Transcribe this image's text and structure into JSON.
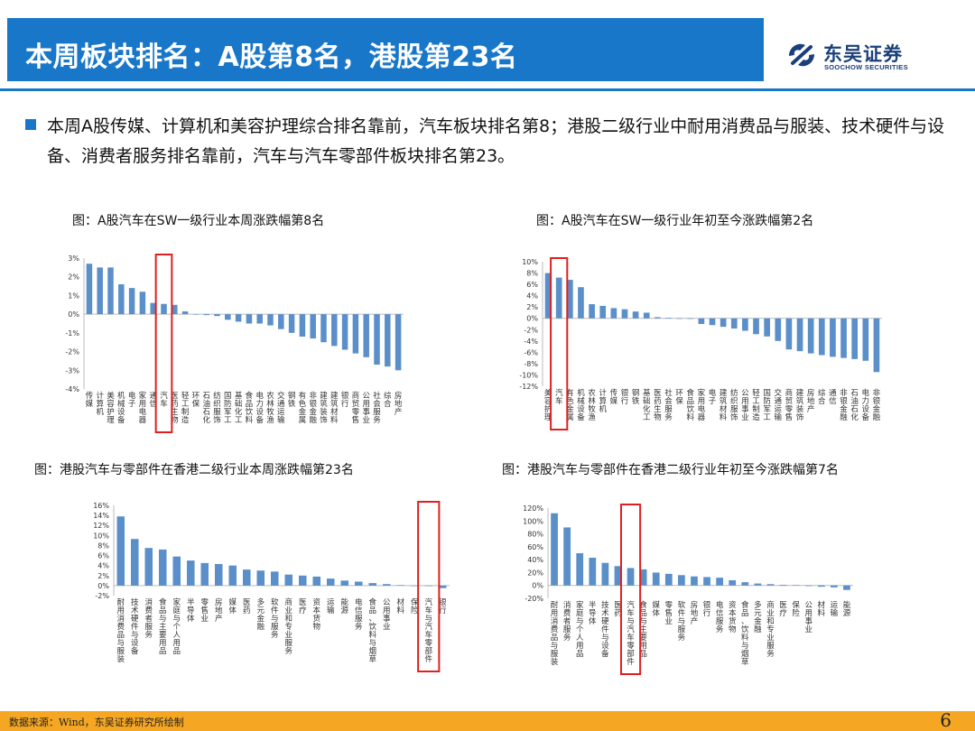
{
  "header": {
    "title": "本周板块排名：A股第8名，港股第23名",
    "logo_cn": "东吴证券",
    "logo_en": "SOOCHOW SECURITIES"
  },
  "summary": {
    "text": "本周A股传媒、计算机和美容护理综合排名靠前，汽车板块排名第8；港股二级行业中耐用消费品与服装、技术硬件与设备、消费者服务排名靠前，汽车与汽车零部件板块排名第23。"
  },
  "colors": {
    "brand": "#1877c9",
    "bar": "#5b8fc9",
    "highlight": "#e02020",
    "footer": "#f5a623"
  },
  "footer": {
    "source": "数据来源：Wind，东吴证券研究所绘制",
    "page": "6"
  },
  "chart_data": [
    {
      "type": "bar",
      "title": "图：A股汽车在SW一级行业本周涨跌幅第8名",
      "categories": [
        "传媒",
        "计算机",
        "美容护理",
        "机械设备",
        "电子",
        "家用电器",
        "通信",
        "汽车",
        "医药生物",
        "轻工制造",
        "环保",
        "石油石化",
        "纺织服饰",
        "国防军工",
        "基础化工",
        "食品饮料",
        "电力设备",
        "农林牧渔",
        "交通运输",
        "钢铁",
        "有色金属",
        "非银金融",
        "建筑装饰",
        "建筑材料",
        "银行",
        "商贸零售",
        "公用事业",
        "社会服务",
        "综合",
        "房地产"
      ],
      "values": [
        2.7,
        2.5,
        2.5,
        1.6,
        1.4,
        1.2,
        0.6,
        0.55,
        0.5,
        0.15,
        0.0,
        -0.05,
        -0.1,
        -0.3,
        -0.4,
        -0.5,
        -0.5,
        -0.6,
        -0.8,
        -1.0,
        -1.2,
        -1.3,
        -1.5,
        -1.7,
        -1.9,
        -2.1,
        -2.3,
        -2.7,
        -2.8,
        -3.0
      ],
      "ylim": [
        -4,
        3
      ],
      "yticks": [
        3,
        2,
        1,
        0,
        -1,
        -2,
        -3,
        -4
      ],
      "highlight_category": "汽车",
      "tick_suffix": "%"
    },
    {
      "type": "bar",
      "title": "图：A股汽车在SW一级行业年初至今涨跌幅第2名",
      "categories": [
        "美容护理",
        "汽车",
        "有色金属",
        "机械设备",
        "农林牧渔",
        "计算机",
        "传媒",
        "银行",
        "钢铁",
        "基础化工",
        "医药生物",
        "社会服务",
        "环保",
        "食品饮料",
        "家用电器",
        "电子",
        "建筑材料",
        "纺织服饰",
        "公用事业",
        "轻工制造",
        "国防军工",
        "交通运输",
        "商贸零售",
        "建筑装饰",
        "房地产",
        "综合",
        "通信",
        "非银金融",
        "石油石化",
        "电力设备",
        "非银金融"
      ],
      "values": [
        8.0,
        7.2,
        6.8,
        5.5,
        2.5,
        2.2,
        1.8,
        1.6,
        1.2,
        1.0,
        0.2,
        0.1,
        0.0,
        -0.1,
        -1.0,
        -1.2,
        -1.5,
        -1.8,
        -2.2,
        -2.8,
        -3.2,
        -4.0,
        -5.5,
        -5.8,
        -6.2,
        -6.5,
        -6.8,
        -7.0,
        -7.2,
        -7.5,
        -9.5
      ],
      "ylim": [
        -12,
        10
      ],
      "yticks": [
        10,
        8,
        6,
        4,
        2,
        0,
        -2,
        -4,
        -6,
        -8,
        -10,
        -12
      ],
      "highlight_category": "汽车",
      "tick_suffix": "%"
    },
    {
      "type": "bar",
      "title": "图：港股汽车与零部件在香港二级行业本周涨跌幅第23名",
      "categories": [
        "耐用消费品与服装",
        "技术硬件与设备",
        "消费者服务",
        "食品与主要用品",
        "家庭与个人用品",
        "半导体",
        "零售业",
        "房地产",
        "媒体",
        "医药",
        "多元金融",
        "软件与服务",
        "商业和专业服务",
        "医疗",
        "资本货物",
        "运输",
        "能源",
        "电信服务",
        "食品、饮料与烟草",
        "公用事业",
        "材料",
        "保险",
        "汽车与汽车零部件",
        "银行"
      ],
      "values": [
        13.8,
        9.3,
        7.5,
        7.2,
        5.8,
        5.0,
        4.5,
        4.3,
        4.0,
        3.2,
        3.0,
        2.8,
        2.2,
        2.0,
        1.8,
        1.4,
        1.0,
        0.8,
        0.5,
        0.3,
        0.1,
        0.0,
        -0.1,
        -0.5
      ],
      "ylim": [
        -2,
        16
      ],
      "yticks": [
        16,
        14,
        12,
        10,
        8,
        6,
        4,
        2,
        0,
        -2
      ],
      "highlight_category": "汽车与汽车零部件",
      "tick_suffix": "%"
    },
    {
      "type": "bar",
      "title": "图：港股汽车与零部件在香港二级行业年初至今涨跌幅第7名",
      "categories": [
        "耐用消费品与服装",
        "消费者服务",
        "家庭与个人用品",
        "半导体",
        "技术硬件与设备",
        "医药",
        "汽车与汽车零部件",
        "食品与主要用品",
        "媒体",
        "零售业",
        "软件与服务",
        "房地产",
        "银行",
        "电信服务",
        "资本货物",
        "食品、饮料与烟草",
        "多元金融",
        "商业和专业服务",
        "医疗",
        "保险",
        "公用事业",
        "材料",
        "运输",
        "能源"
      ],
      "values": [
        112,
        90,
        50,
        43,
        35,
        30,
        27,
        25,
        20,
        18,
        16,
        14,
        13,
        12,
        8,
        5,
        3,
        2,
        1,
        0.5,
        -1,
        -2,
        -3,
        -7
      ],
      "ylim": [
        -20,
        120
      ],
      "yticks": [
        120,
        100,
        80,
        60,
        40,
        20,
        0,
        -20
      ],
      "highlight_category": "汽车与汽车零部件",
      "tick_suffix": "%"
    }
  ]
}
